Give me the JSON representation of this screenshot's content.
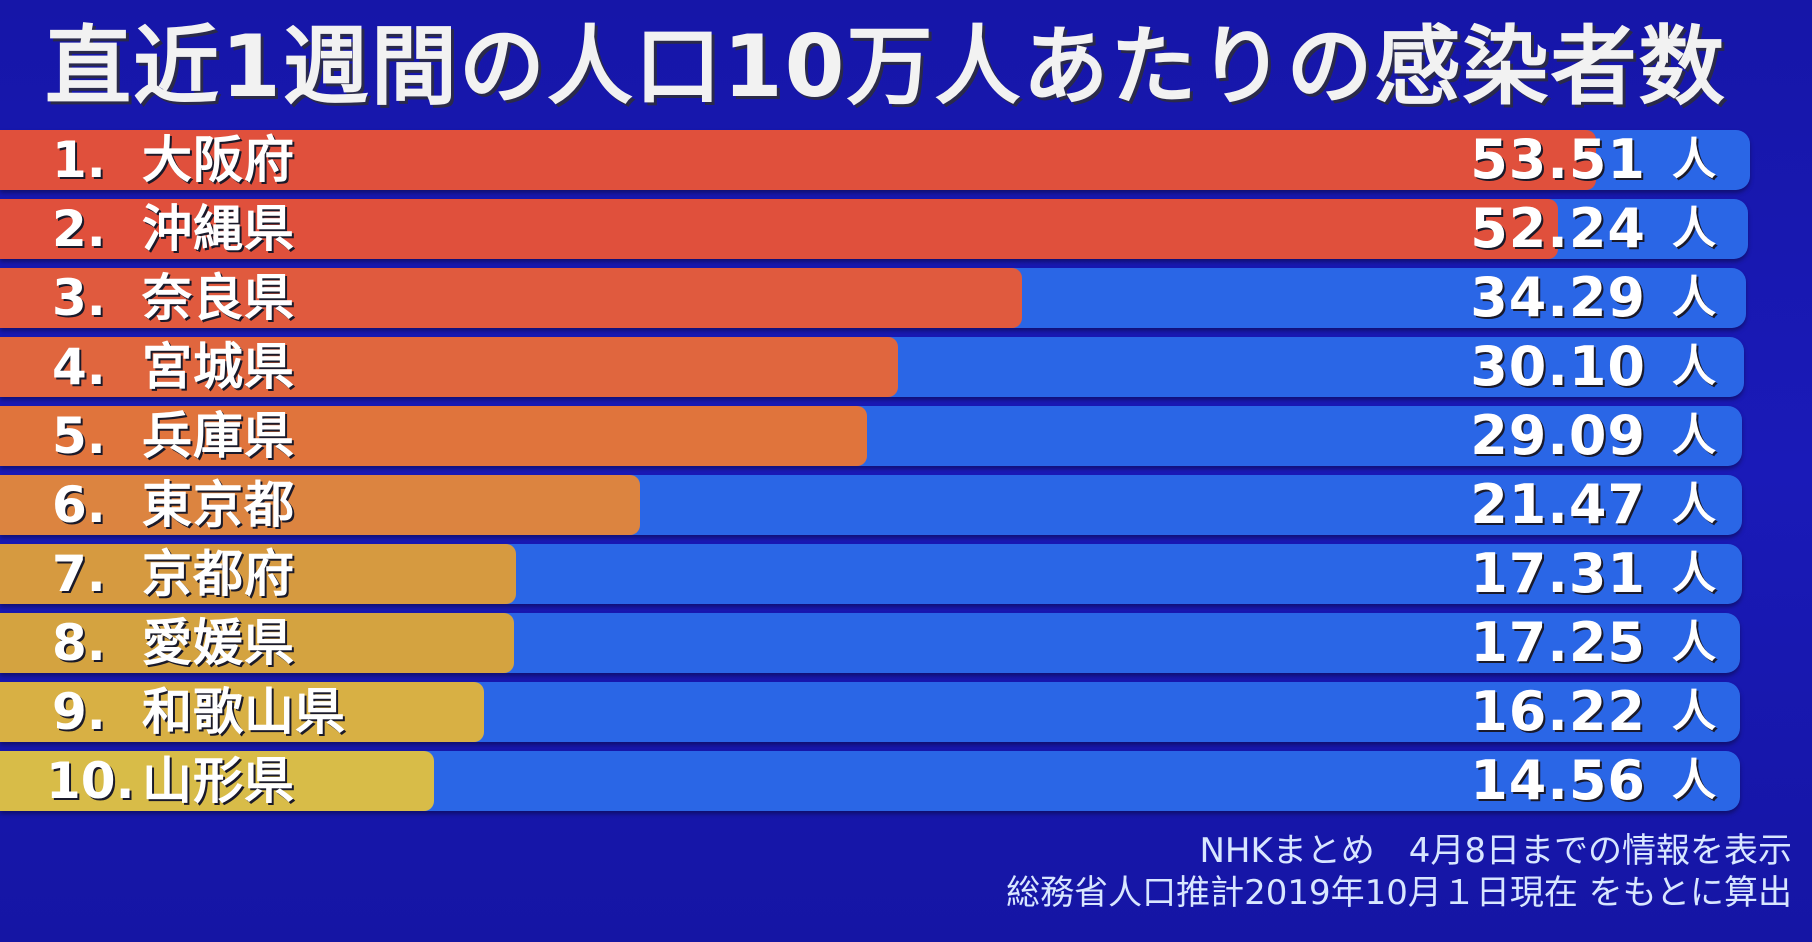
{
  "title": "直近1週間の人口10万人あたりの感染者数",
  "unit_label": "人",
  "notes": [
    "NHKまとめ　4月8日までの情報を表示",
    "総務省人口推計2019年10月１日現在 をもとに算出"
  ],
  "chart_data": {
    "type": "bar",
    "orientation": "horizontal",
    "title": "直近1週間の人口10万人あたりの感染者数",
    "unit": "人",
    "ranks": [
      "1.",
      "2.",
      "3.",
      "4.",
      "5.",
      "6.",
      "7.",
      "8.",
      "9.",
      "10."
    ],
    "categories": [
      "大阪府",
      "沖縄県",
      "奈良県",
      "宮城県",
      "兵庫県",
      "東京都",
      "京都府",
      "愛媛県",
      "和歌山県",
      "山形県"
    ],
    "values": [
      53.51,
      52.24,
      34.29,
      30.1,
      29.09,
      21.47,
      17.31,
      17.25,
      16.22,
      14.56
    ],
    "value_labels": [
      "53.51",
      "52.24",
      "34.29",
      "30.10",
      "29.09",
      "21.47",
      "17.31",
      "17.25",
      "16.22",
      "14.56"
    ],
    "colors": [
      "#e0503c",
      "#e0503c",
      "#e05a3e",
      "#e0663e",
      "#e0743c",
      "#dc8440",
      "#d69a40",
      "#d4a340",
      "#d8b044",
      "#d8bc48"
    ],
    "track_color": "#2a66e6",
    "xlim": [
      0,
      55
    ]
  }
}
